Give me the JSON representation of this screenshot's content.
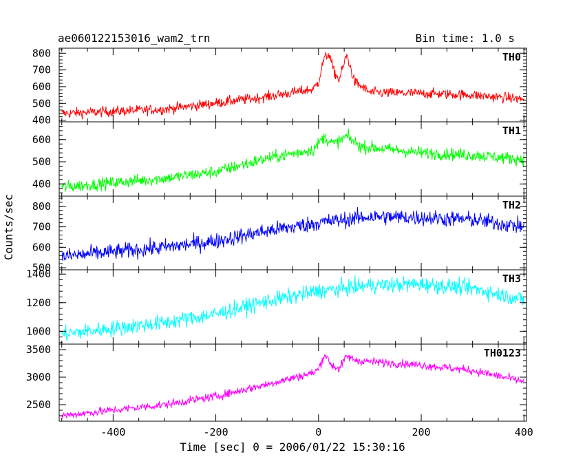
{
  "header": {
    "left": "ae060122153016_wam2_trn",
    "right": "Bin time: 1.0 s"
  },
  "chart_data": {
    "type": "line",
    "xlabel": "Time [sec] 0 = 2006/01/22 15:30:16",
    "ylabel": "Counts/sec",
    "xlim": [
      -505,
      405
    ],
    "xticks": [
      -400,
      -200,
      0,
      200,
      400
    ],
    "bin_time_s": 1.0,
    "panels": [
      {
        "label": "TH0",
        "color": "#ff0000",
        "ylim": [
          390,
          830
        ],
        "yticks": [
          400,
          500,
          600,
          700,
          800
        ],
        "trend": [
          [
            -500,
            440
          ],
          [
            -300,
            465
          ],
          [
            -100,
            540
          ],
          [
            -10,
            585
          ],
          [
            0,
            630
          ],
          [
            10,
            760
          ],
          [
            20,
            800
          ],
          [
            30,
            690
          ],
          [
            40,
            640
          ],
          [
            55,
            790
          ],
          [
            70,
            630
          ],
          [
            100,
            565
          ],
          [
            200,
            560
          ],
          [
            300,
            550
          ],
          [
            400,
            525
          ]
        ],
        "noise": 22
      },
      {
        "label": "TH1",
        "color": "#00ff00",
        "ylim": [
          345,
          680
        ],
        "yticks": [
          400,
          500,
          600
        ],
        "trend": [
          [
            -500,
            385
          ],
          [
            -300,
            425
          ],
          [
            -200,
            455
          ],
          [
            -100,
            515
          ],
          [
            -10,
            555
          ],
          [
            10,
            610
          ],
          [
            30,
            580
          ],
          [
            55,
            615
          ],
          [
            80,
            570
          ],
          [
            200,
            540
          ],
          [
            300,
            530
          ],
          [
            400,
            510
          ]
        ],
        "noise": 20
      },
      {
        "label": "TH2",
        "color": "#0000ff",
        "ylim": [
          490,
          850
        ],
        "yticks": [
          500,
          600,
          700,
          800
        ],
        "trend": [
          [
            -500,
            555
          ],
          [
            -300,
            600
          ],
          [
            -200,
            630
          ],
          [
            -100,
            680
          ],
          [
            0,
            720
          ],
          [
            100,
            750
          ],
          [
            200,
            745
          ],
          [
            300,
            735
          ],
          [
            400,
            700
          ]
        ],
        "noise": 28
      },
      {
        "label": "TH3",
        "color": "#00ffff",
        "ylim": [
          910,
          1430
        ],
        "yticks": [
          1000,
          1200,
          1400
        ],
        "trend": [
          [
            -500,
            980
          ],
          [
            -300,
            1060
          ],
          [
            -200,
            1120
          ],
          [
            -100,
            1210
          ],
          [
            0,
            1280
          ],
          [
            100,
            1320
          ],
          [
            200,
            1330
          ],
          [
            300,
            1300
          ],
          [
            400,
            1220
          ]
        ],
        "noise": 40
      },
      {
        "label": "TH0123",
        "color": "#ff00ff",
        "ylim": [
          2200,
          3600
        ],
        "yticks": [
          2500,
          3000,
          3500
        ],
        "trend": [
          [
            -500,
            2300
          ],
          [
            -300,
            2500
          ],
          [
            -200,
            2650
          ],
          [
            -100,
            2870
          ],
          [
            -10,
            3080
          ],
          [
            0,
            3150
          ],
          [
            12,
            3420
          ],
          [
            25,
            3220
          ],
          [
            40,
            3150
          ],
          [
            55,
            3380
          ],
          [
            75,
            3300
          ],
          [
            200,
            3220
          ],
          [
            300,
            3120
          ],
          [
            400,
            2920
          ]
        ],
        "noise": 55
      }
    ]
  }
}
